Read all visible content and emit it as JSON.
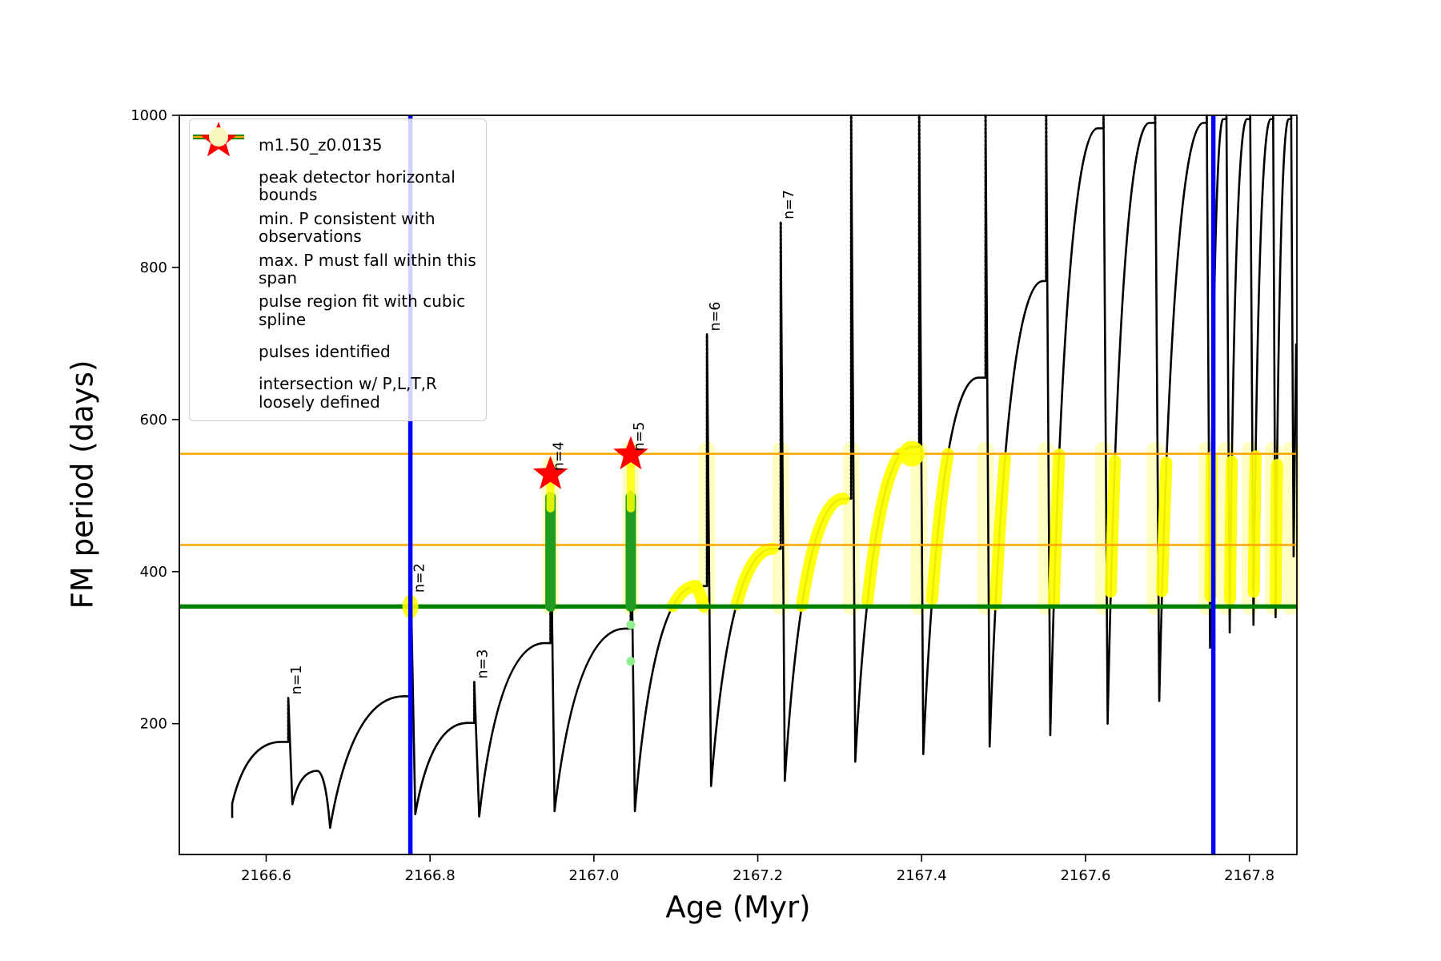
{
  "chart_data": {
    "type": "line",
    "title": "",
    "xlabel": "Age (Myr)",
    "ylabel": "FM period (days)",
    "xlim": [
      2166.494,
      2167.858
    ],
    "ylim": [
      28,
      1000
    ],
    "xticks": [
      2166.6,
      2166.8,
      2167.0,
      2167.2,
      2167.4,
      2167.6,
      2167.8
    ],
    "xtick_labels": [
      "2166.6",
      "2166.8",
      "2167.0",
      "2167.2",
      "2167.4",
      "2167.6",
      "2167.8"
    ],
    "yticks": [
      200,
      400,
      600,
      800,
      1000
    ],
    "ytick_labels": [
      "200",
      "400",
      "600",
      "800",
      "1000"
    ],
    "grid": false,
    "series_name": "m1.50_z0.0135",
    "bounds": {
      "peak_detector_x": [
        2166.776,
        2167.756
      ],
      "min_period_y": 354,
      "max_period_span_y": [
        555,
        435
      ]
    },
    "series_start": [
      2166.5585,
      76
    ],
    "pulses": [
      {
        "crest": [
          2166.618,
          176
        ],
        "spike": [
          2166.627,
          234
        ],
        "crash": [
          2166.632,
          94
        ],
        "label": "n=1"
      },
      {
        "crest": [
          2166.662,
          138
        ],
        "spike": null,
        "crash": [
          2166.678,
          63
        ]
      },
      {
        "crest": [
          2166.768,
          236
        ],
        "spike": [
          2166.777,
          358
        ],
        "crash": [
          2166.782,
          81
        ],
        "label": "n=2",
        "label_v": 368,
        "green_cross_blob": true
      },
      {
        "crest": [
          2166.846,
          201
        ],
        "spike": [
          2166.854,
          255
        ],
        "crash": [
          2166.86,
          78
        ],
        "label": "n=3"
      },
      {
        "crest": [
          2166.94,
          306
        ],
        "spike": [
          2166.947,
          500
        ],
        "crash": [
          2166.952,
          85
        ],
        "label": "n=4",
        "star_v": 528,
        "green_col": [
          354,
          498
        ],
        "pale_col": [
          354,
          540
        ]
      },
      {
        "crest": [
          2167.038,
          325
        ],
        "spike": [
          2167.045,
          505
        ],
        "crash": [
          2167.05,
          85
        ],
        "label": "n=5",
        "star_v": 554,
        "green_col": [
          354,
          498
        ],
        "pale_col": [
          354,
          560
        ],
        "spline_dots": [
          282,
          330
        ]
      },
      {
        "crest": [
          2167.125,
          381
        ],
        "spike": [
          2167.138,
          712
        ],
        "crash": [
          2167.143,
          118
        ],
        "label": "n=6",
        "yellow_rise": true,
        "arch": true,
        "pale_col": [
          354,
          560
        ]
      },
      {
        "crest": [
          2167.218,
          430
        ],
        "spike": [
          2167.228,
          859
        ],
        "crash": [
          2167.233,
          125
        ],
        "label": "n=7",
        "yellow_rise": true,
        "pale_col": [
          354,
          560
        ]
      },
      {
        "crest": [
          2167.305,
          496
        ],
        "spike": [
          2167.314,
          1000
        ],
        "crash": [
          2167.319,
          150
        ],
        "yellow_rise": true,
        "pale_col": [
          354,
          560
        ]
      },
      {
        "crest": [
          2167.388,
          564
        ],
        "spike": [
          2167.397,
          1000
        ],
        "crash": [
          2167.402,
          160
        ],
        "yellow_rise": true,
        "pale_col": [
          354,
          560
        ],
        "crest_blob": true
      },
      {
        "crest": [
          2167.469,
          655
        ],
        "spike": [
          2167.478,
          1000
        ],
        "crash": [
          2167.483,
          170
        ],
        "yellow_rise": true,
        "pale_col": [
          354,
          560
        ]
      },
      {
        "crest": [
          2167.548,
          782
        ],
        "spike": [
          2167.552,
          1000
        ],
        "crash": [
          2167.557,
          185
        ],
        "yellow_rise": true,
        "pale_col": [
          354,
          560
        ]
      },
      {
        "crest": [
          2167.615,
          983
        ],
        "spike": [
          2167.622,
          1000
        ],
        "crash": [
          2167.627,
          200
        ],
        "yellow_rise": true,
        "pale_col": [
          354,
          560
        ]
      },
      {
        "crest": [
          2167.678,
          990
        ],
        "spike": [
          2167.685,
          1000
        ],
        "crash": [
          2167.69,
          230
        ],
        "yellow_rise": true,
        "pale_col": [
          354,
          560
        ]
      },
      {
        "crest": [
          2167.744,
          990
        ],
        "spike": [
          2167.748,
          1000
        ],
        "crash": [
          2167.752,
          300
        ],
        "yellow_rise": true,
        "pale_col": [
          354,
          560
        ]
      },
      {
        "crest": [
          2167.768,
          995
        ],
        "spike": [
          2167.772,
          1000
        ],
        "crash": [
          2167.776,
          320
        ],
        "yellow_rise": true,
        "pale_col": [
          354,
          560
        ]
      },
      {
        "crest": [
          2167.797,
          995
        ],
        "spike": [
          2167.801,
          1000
        ],
        "crash": [
          2167.805,
          330
        ],
        "yellow_rise": true,
        "pale_col": [
          354,
          560
        ]
      },
      {
        "crest": [
          2167.826,
          995
        ],
        "spike": [
          2167.829,
          1000
        ],
        "crash": [
          2167.832,
          340
        ],
        "yellow_rise": true,
        "pale_col": [
          354,
          560
        ]
      },
      {
        "crest": [
          2167.848,
          995
        ],
        "spike": [
          2167.851,
          1000
        ],
        "crash": [
          2167.854,
          420
        ],
        "yellow_rise": true,
        "pale_col": [
          354,
          560
        ]
      }
    ],
    "series_end": [
      2167.857,
      700
    ],
    "colors": {
      "series": "#000000",
      "peak_detector": "#0000ff",
      "min_period": "#008000",
      "max_period_span": "#ffa500",
      "spline_fit": "#90ee90",
      "pulse_star": "#ff0000",
      "intersection_bright": "#ffff00",
      "intersection_pale": "#f7f7be",
      "green_column": "#1f9c1f"
    }
  },
  "legend": {
    "items": [
      {
        "label": "m1.50_z0.0135",
        "marker": "line-dot",
        "color": "#000000"
      },
      {
        "label": "peak detector horizontal bounds",
        "marker": "thick-line",
        "color": "#0000ff"
      },
      {
        "label": "min. P consistent with observations",
        "marker": "thick-line",
        "color": "#008000"
      },
      {
        "label": "max. P must fall within this span",
        "marker": "line",
        "color": "#ffa500"
      },
      {
        "label": "pulse region fit with cubic spline",
        "marker": "dot-small",
        "color": "#90ee90"
      },
      {
        "label": "pulses identified",
        "marker": "star",
        "color": "#ff0000"
      },
      {
        "label": "intersection w/ P,L,T,R\nloosely defined",
        "marker": "dot-large",
        "color": "#f7f7be"
      }
    ]
  }
}
